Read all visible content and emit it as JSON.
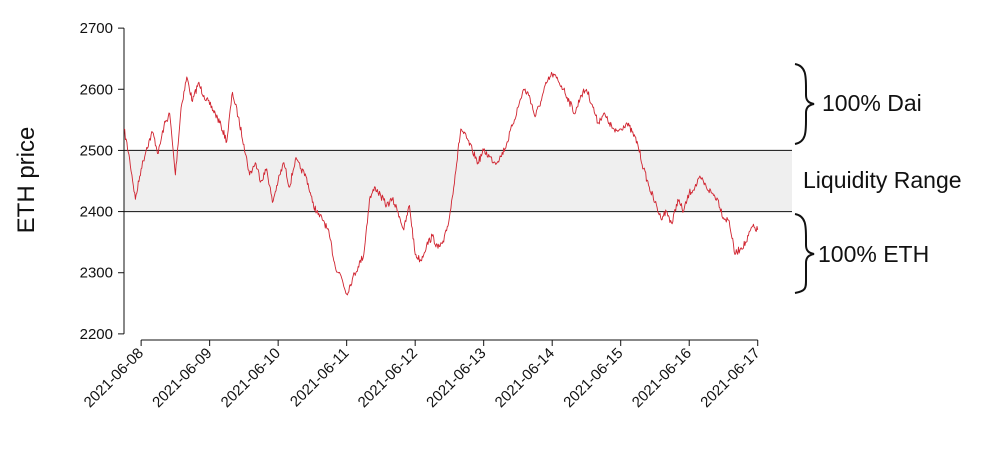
{
  "chart_data": {
    "type": "line",
    "ylabel": "ETH price",
    "xlabel": "",
    "ylim": [
      2190,
      2710
    ],
    "xlim": [
      "2021-06-07T18:00",
      "2021-06-17T05:00"
    ],
    "y_ticks": [
      2200,
      2300,
      2400,
      2500,
      2600,
      2700
    ],
    "x_ticks": [
      "2021-06-08",
      "2021-06-09",
      "2021-06-10",
      "2021-06-11",
      "2021-06-12",
      "2021-06-13",
      "2021-06-14",
      "2021-06-15",
      "2021-06-16",
      "2021-06-17"
    ],
    "grid": false,
    "legend": "none",
    "band": {
      "lower": 2400,
      "upper": 2500,
      "color": "#efefef"
    },
    "line_color": "#d0232f",
    "annotations": {
      "upper": "100% Dai",
      "middle": "Liquidity Range",
      "lower": "100% ETH"
    },
    "series": [
      {
        "x": [
          "2021-06-07T18:00",
          "2021-06-07T20:00",
          "2021-06-07T22:00",
          "2021-06-08T00:00",
          "2021-06-08T02:00",
          "2021-06-08T04:00",
          "2021-06-08T06:00",
          "2021-06-08T08:00",
          "2021-06-08T10:00",
          "2021-06-08T12:00",
          "2021-06-08T14:00",
          "2021-06-08T16:00",
          "2021-06-08T18:00",
          "2021-06-08T20:00",
          "2021-06-08T22:00",
          "2021-06-09T00:00",
          "2021-06-09T02:00",
          "2021-06-09T04:00",
          "2021-06-09T06:00",
          "2021-06-09T08:00",
          "2021-06-09T10:00",
          "2021-06-09T12:00",
          "2021-06-09T14:00",
          "2021-06-09T16:00",
          "2021-06-09T18:00",
          "2021-06-09T20:00",
          "2021-06-09T22:00",
          "2021-06-10T00:00",
          "2021-06-10T02:00",
          "2021-06-10T04:00",
          "2021-06-10T06:00",
          "2021-06-10T08:00",
          "2021-06-10T10:00",
          "2021-06-10T12:00",
          "2021-06-10T14:00",
          "2021-06-10T16:00",
          "2021-06-10T18:00",
          "2021-06-10T20:00",
          "2021-06-10T22:00",
          "2021-06-11T00:00",
          "2021-06-11T02:00",
          "2021-06-11T04:00",
          "2021-06-11T06:00",
          "2021-06-11T08:00",
          "2021-06-11T10:00",
          "2021-06-11T12:00",
          "2021-06-11T14:00",
          "2021-06-11T16:00",
          "2021-06-11T18:00",
          "2021-06-11T20:00",
          "2021-06-11T22:00",
          "2021-06-12T00:00",
          "2021-06-12T02:00",
          "2021-06-12T04:00",
          "2021-06-12T06:00",
          "2021-06-12T08:00",
          "2021-06-12T10:00",
          "2021-06-12T12:00",
          "2021-06-12T14:00",
          "2021-06-12T16:00",
          "2021-06-12T18:00",
          "2021-06-12T20:00",
          "2021-06-12T22:00",
          "2021-06-13T00:00",
          "2021-06-13T02:00",
          "2021-06-13T04:00",
          "2021-06-13T06:00",
          "2021-06-13T08:00",
          "2021-06-13T10:00",
          "2021-06-13T12:00",
          "2021-06-13T14:00",
          "2021-06-13T16:00",
          "2021-06-13T18:00",
          "2021-06-13T20:00",
          "2021-06-13T22:00",
          "2021-06-14T00:00",
          "2021-06-14T02:00",
          "2021-06-14T04:00",
          "2021-06-14T06:00",
          "2021-06-14T08:00",
          "2021-06-14T10:00",
          "2021-06-14T12:00",
          "2021-06-14T14:00",
          "2021-06-14T16:00",
          "2021-06-14T18:00",
          "2021-06-14T20:00",
          "2021-06-14T22:00",
          "2021-06-15T00:00",
          "2021-06-15T02:00",
          "2021-06-15T04:00",
          "2021-06-15T06:00",
          "2021-06-15T08:00",
          "2021-06-15T10:00",
          "2021-06-15T12:00",
          "2021-06-15T14:00",
          "2021-06-15T16:00",
          "2021-06-15T18:00",
          "2021-06-15T20:00",
          "2021-06-15T22:00",
          "2021-06-16T00:00",
          "2021-06-16T02:00",
          "2021-06-16T04:00",
          "2021-06-16T06:00",
          "2021-06-16T08:00",
          "2021-06-16T10:00",
          "2021-06-16T12:00",
          "2021-06-16T14:00",
          "2021-06-16T16:00",
          "2021-06-16T18:00",
          "2021-06-16T20:00",
          "2021-06-16T22:00",
          "2021-06-17T00:00"
        ],
        "values": [
          2535,
          2485,
          2420,
          2470,
          2505,
          2530,
          2495,
          2540,
          2560,
          2460,
          2570,
          2620,
          2580,
          2610,
          2590,
          2575,
          2560,
          2540,
          2515,
          2595,
          2555,
          2510,
          2460,
          2480,
          2450,
          2470,
          2415,
          2450,
          2480,
          2440,
          2485,
          2470,
          2455,
          2415,
          2395,
          2385,
          2360,
          2310,
          2295,
          2265,
          2290,
          2310,
          2330,
          2420,
          2440,
          2425,
          2410,
          2420,
          2400,
          2370,
          2410,
          2330,
          2320,
          2345,
          2360,
          2340,
          2350,
          2390,
          2460,
          2535,
          2520,
          2500,
          2480,
          2500,
          2490,
          2480,
          2490,
          2510,
          2540,
          2570,
          2600,
          2590,
          2555,
          2580,
          2610,
          2625,
          2615,
          2600,
          2580,
          2560,
          2590,
          2600,
          2575,
          2545,
          2560,
          2545,
          2530,
          2535,
          2545,
          2530,
          2510,
          2470,
          2440,
          2415,
          2390,
          2400,
          2380,
          2420,
          2400,
          2430,
          2440,
          2455,
          2440,
          2430,
          2420,
          2390,
          2385,
          2330,
          2340,
          2350,
          2375,
          2370
        ]
      }
    ]
  }
}
